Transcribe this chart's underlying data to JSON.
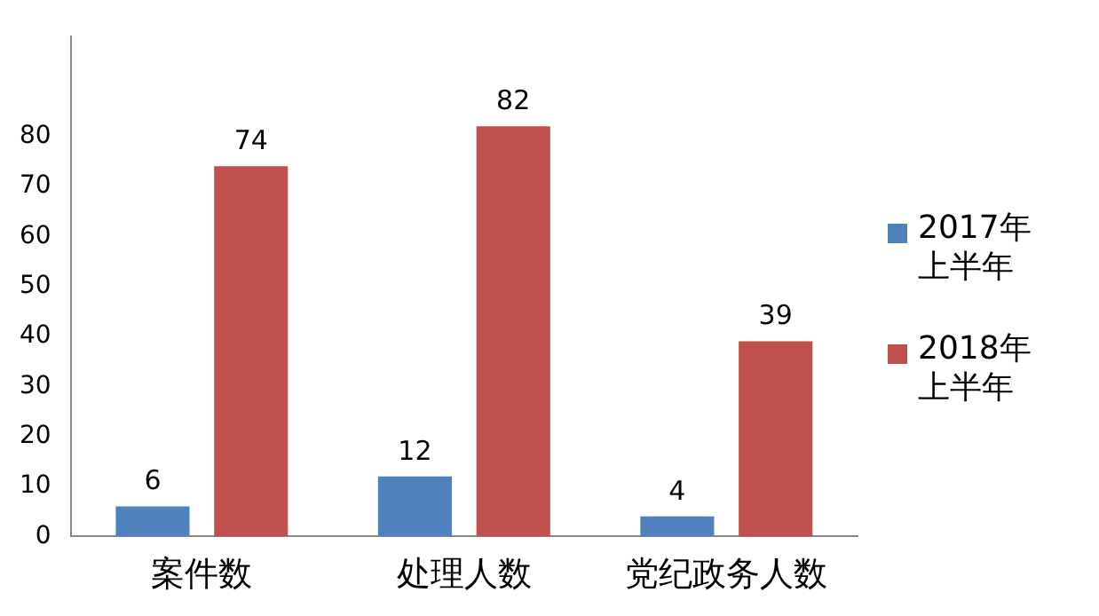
{
  "chart_data": {
    "type": "bar",
    "categories": [
      "案件数",
      "处理人数",
      "党纪政务人数"
    ],
    "series": [
      {
        "name": "2017年上半年",
        "color": "#4f81bd",
        "values": [
          6,
          12,
          4
        ]
      },
      {
        "name": "2018年上半年",
        "color": "#c0504d",
        "values": [
          74,
          82,
          39
        ]
      }
    ],
    "ylim": [
      0,
      100
    ],
    "yticks": [
      0,
      10,
      20,
      30,
      40,
      50,
      60,
      70,
      80
    ],
    "grid": false,
    "legend": "right",
    "data_labels": true
  }
}
